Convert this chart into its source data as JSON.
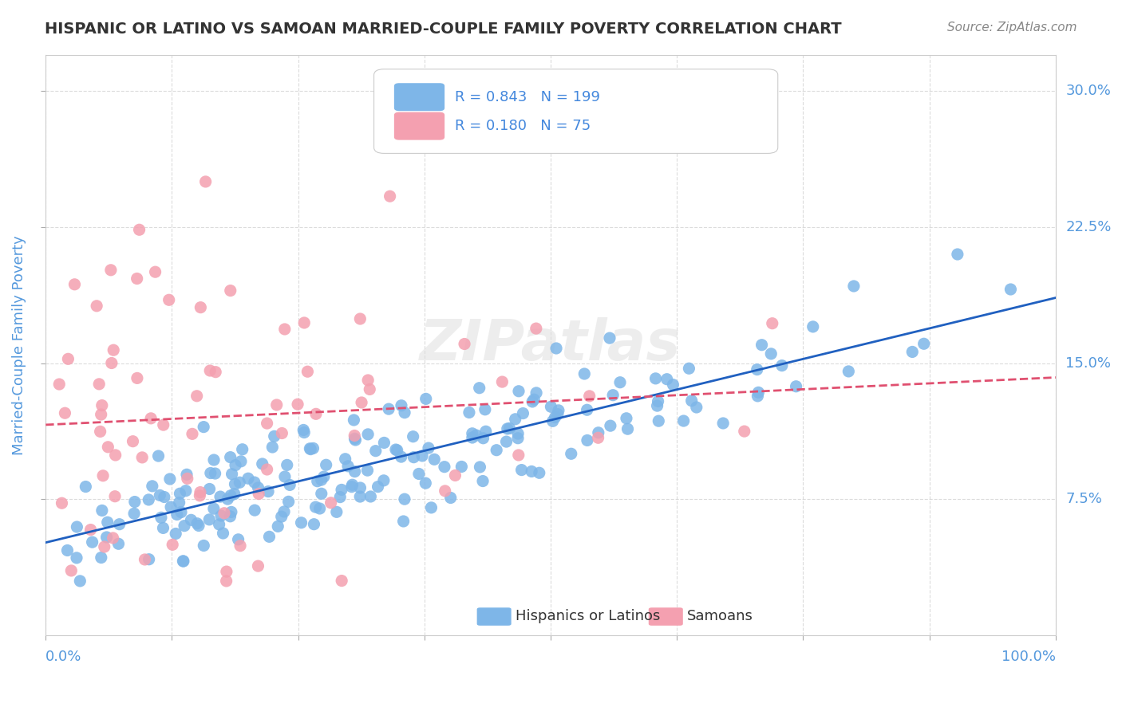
{
  "title": "HISPANIC OR LATINO VS SAMOAN MARRIED-COUPLE FAMILY POVERTY CORRELATION CHART",
  "source": "Source: ZipAtlas.com",
  "ylabel": "Married-Couple Family Poverty",
  "legend_labels": [
    "Hispanics or Latinos",
    "Samoans"
  ],
  "r_blue": 0.843,
  "n_blue": 199,
  "r_pink": 0.18,
  "n_pink": 75,
  "blue_color": "#7EB6E8",
  "pink_color": "#F4A0B0",
  "blue_line_color": "#2060C0",
  "pink_line_color": "#E05070",
  "ytick_labels": [
    "7.5%",
    "15.0%",
    "22.5%",
    "30.0%"
  ],
  "ytick_values": [
    0.075,
    0.15,
    0.225,
    0.3
  ],
  "background_color": "#ffffff",
  "plot_bg_color": "#ffffff",
  "grid_color": "#cccccc",
  "title_color": "#333333",
  "axis_label_color": "#5599dd",
  "legend_text_color": "#333333",
  "r_value_color": "#4488dd"
}
